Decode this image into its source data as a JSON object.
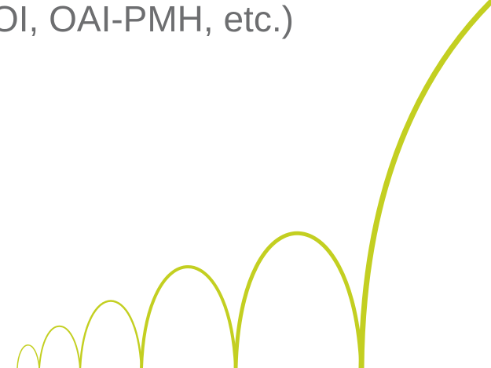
{
  "slide": {
    "text_fragment": "OI, OAI-PMH, etc.)"
  },
  "decoration": {
    "name": "bouncing-arcs",
    "color": "#c3cf21"
  }
}
